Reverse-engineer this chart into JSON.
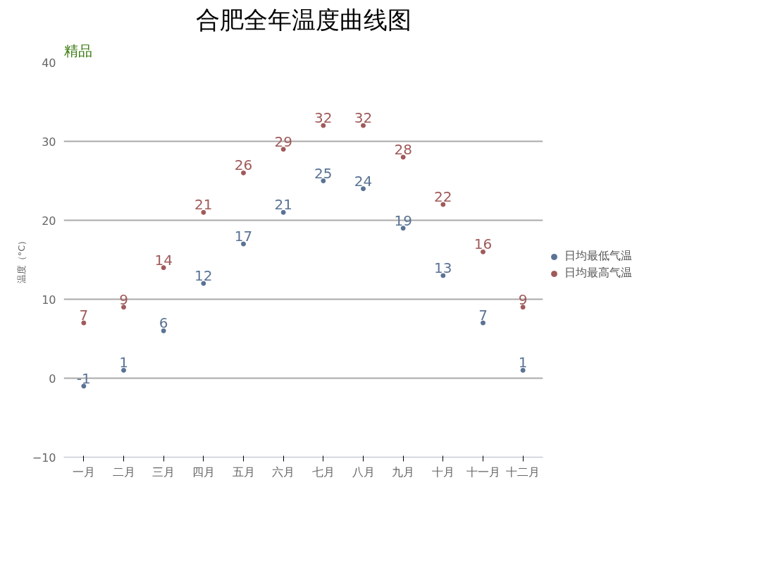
{
  "chart_data": {
    "type": "scatter",
    "title": "合肥全年温度曲线图",
    "ylabel": "温度（°C）",
    "annotations": [
      "精品"
    ],
    "categories": [
      "一月",
      "二月",
      "三月",
      "四月",
      "五月",
      "六月",
      "七月",
      "八月",
      "九月",
      "十月",
      "十一月",
      "十二月"
    ],
    "series": [
      {
        "name": "日均最低气温",
        "color": "#5a7394",
        "values": [
          -1,
          1,
          6,
          12,
          17,
          21,
          25,
          24,
          19,
          13,
          7,
          1
        ]
      },
      {
        "name": "日均最高气温",
        "color": "#a05a5a",
        "values": [
          7,
          9,
          14,
          21,
          26,
          29,
          32,
          32,
          28,
          22,
          16,
          9
        ]
      }
    ],
    "ylim": [
      -10,
      40
    ],
    "yticks": [
      -10,
      0,
      10,
      20,
      30,
      40
    ],
    "grid": "y",
    "legend": "right",
    "marker": "circle",
    "data_labels": true
  }
}
